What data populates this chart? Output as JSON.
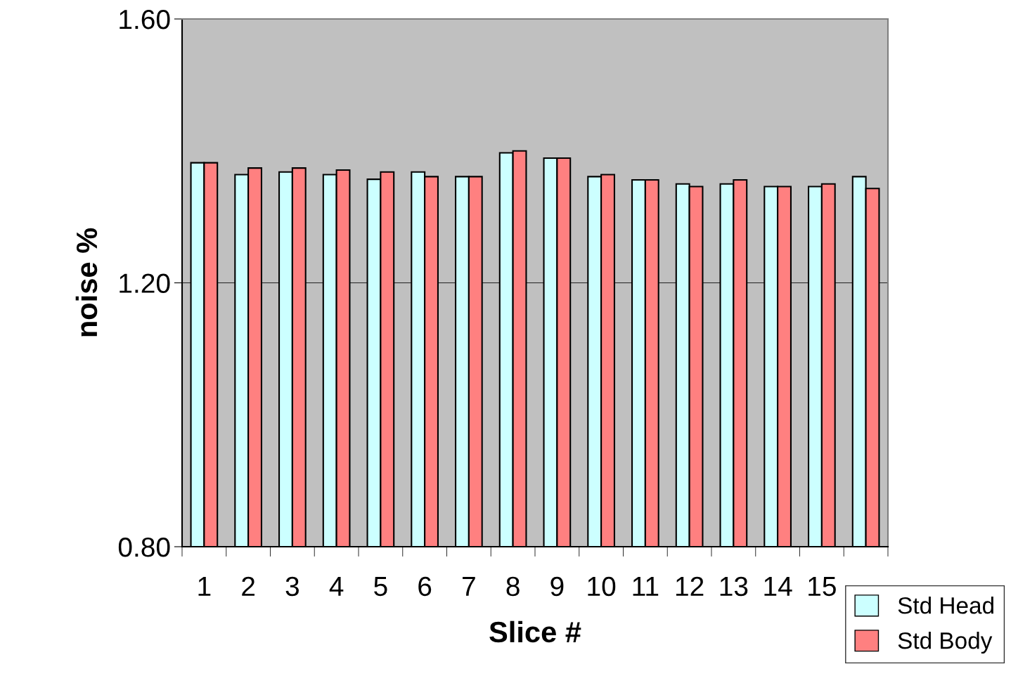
{
  "chart_data": {
    "type": "bar",
    "xlabel": "Slice #",
    "ylabel": "noise %",
    "categories": [
      "1",
      "2",
      "3",
      "4",
      "5",
      "6",
      "7",
      "8",
      "9",
      "10",
      "11",
      "12",
      "13",
      "14",
      "15",
      null
    ],
    "series": [
      {
        "name": "Std Head",
        "color": "#ccffff",
        "values": [
          1.382,
          1.364,
          1.368,
          1.364,
          1.357,
          1.368,
          1.361,
          1.397,
          1.389,
          1.361,
          1.356,
          1.35,
          1.35,
          1.346,
          1.346,
          1.361
        ]
      },
      {
        "name": "Std Body",
        "color": "#ff8080",
        "values": [
          1.382,
          1.374,
          1.374,
          1.371,
          1.368,
          1.361,
          1.361,
          1.4,
          1.389,
          1.364,
          1.356,
          1.346,
          1.356,
          1.346,
          1.35,
          1.343
        ]
      }
    ],
    "ylim": [
      0.8,
      1.6
    ],
    "yticks": [
      {
        "value": 0.8,
        "label": "0.80"
      },
      {
        "value": 1.2,
        "label": "1.20"
      },
      {
        "value": 1.6,
        "label": "1.60"
      }
    ],
    "grid": "y",
    "legend": "bottom right"
  }
}
